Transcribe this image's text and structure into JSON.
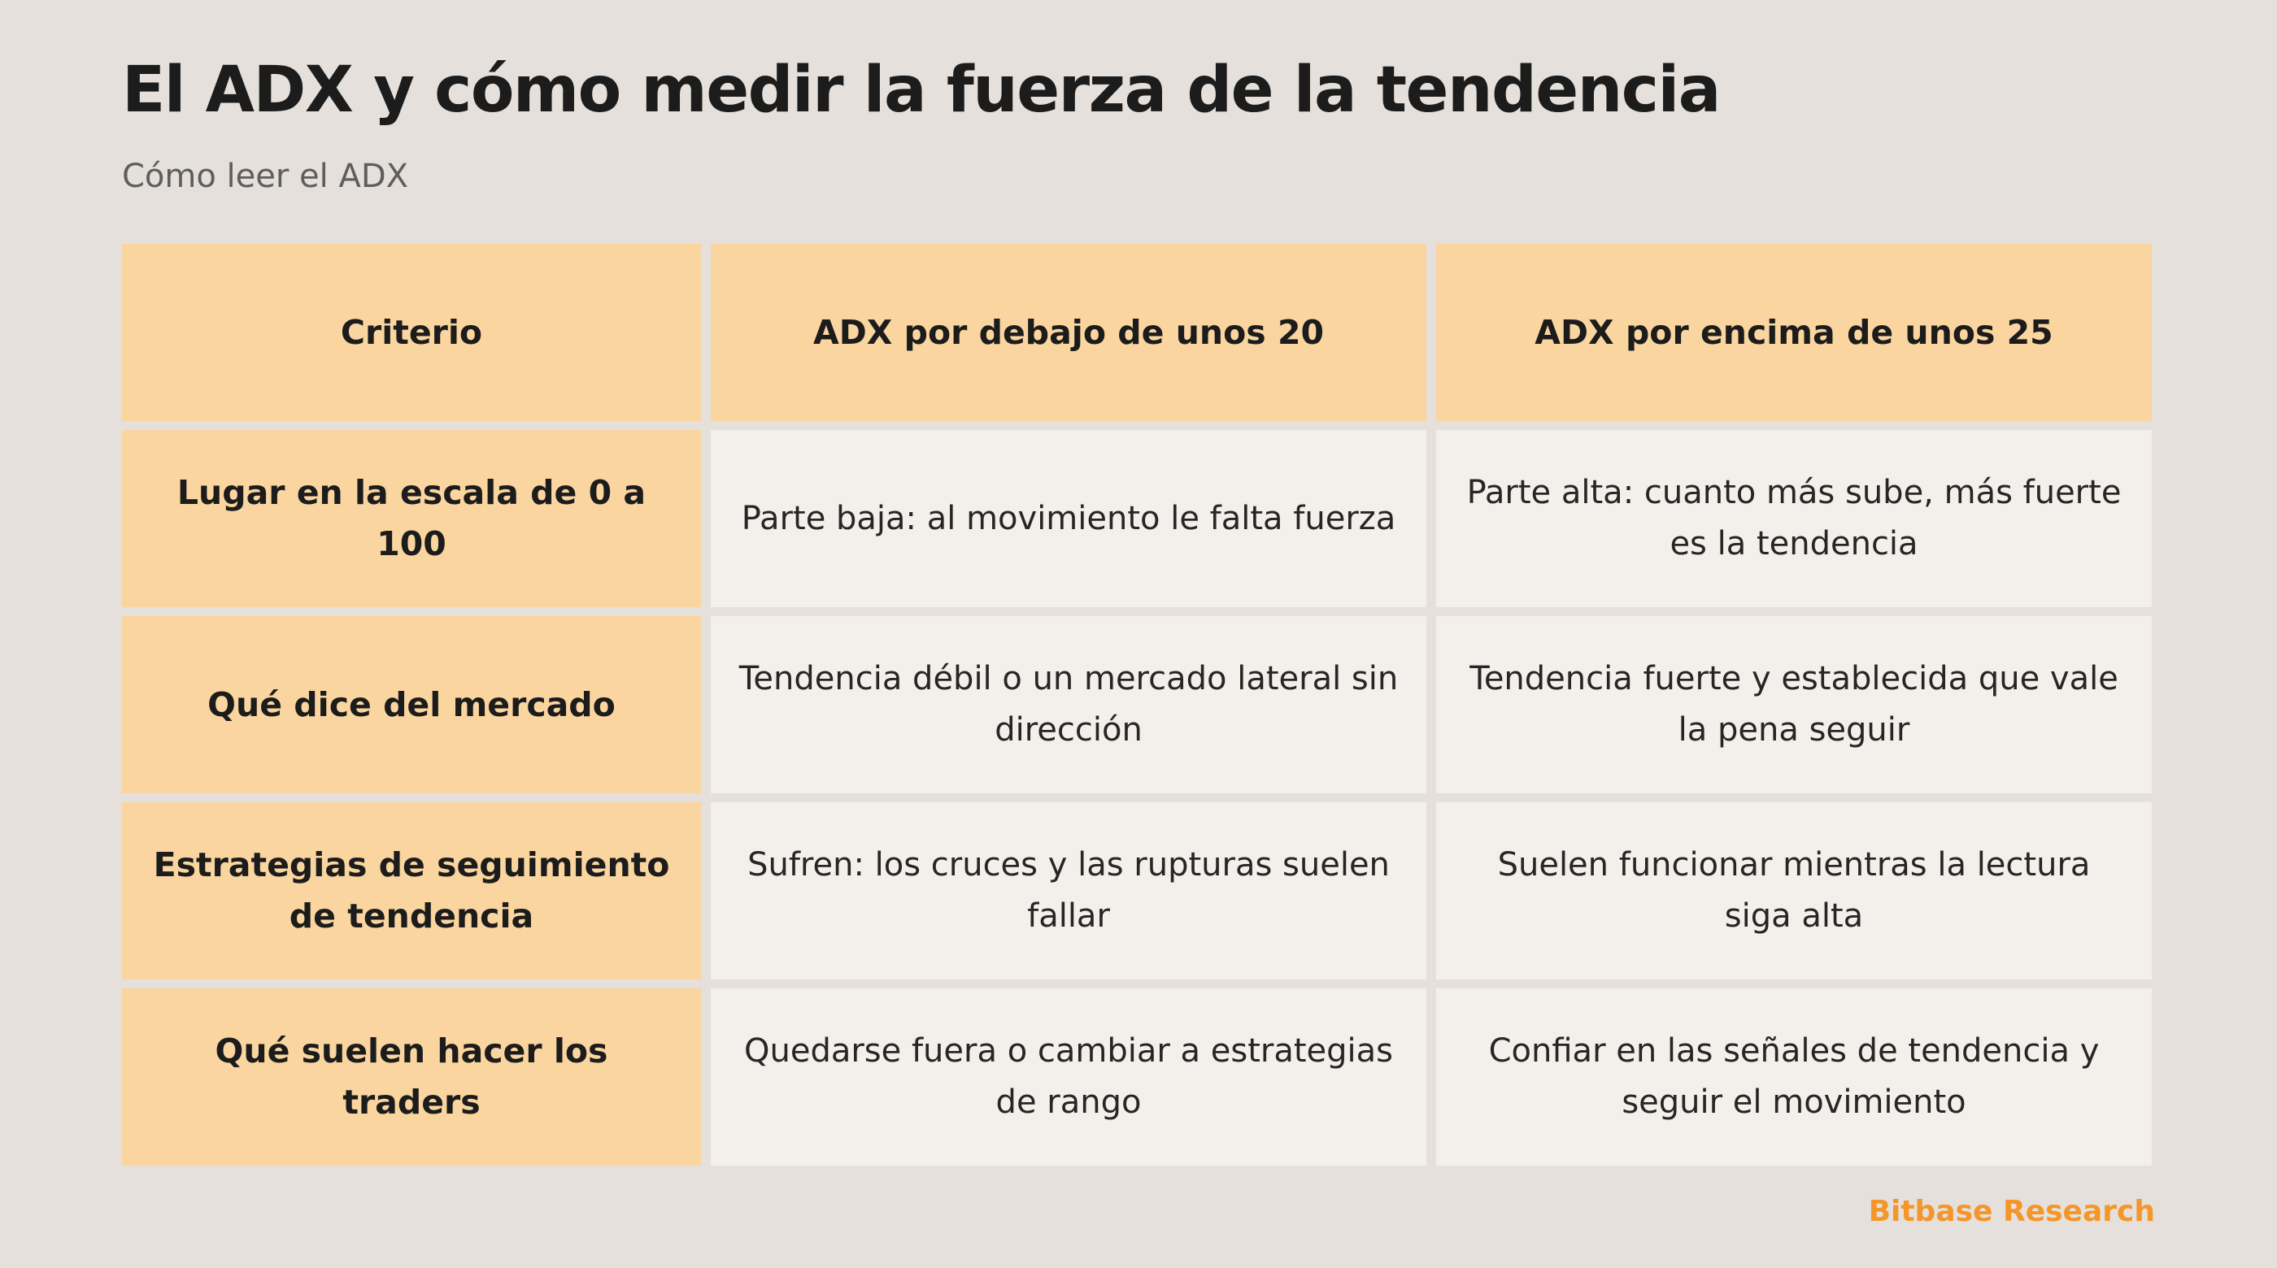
{
  "title": "El ADX y cómo medir la fuerza de la tendencia",
  "subtitle": "Cómo leer el ADX",
  "table": {
    "headers": [
      "Criterio",
      "ADX por debajo de unos 20",
      "ADX por encima de unos 25"
    ],
    "rows": [
      [
        "Lugar en la escala de 0 a 100",
        "Parte baja: al movimiento le falta fuerza",
        "Parte alta: cuanto más sube, más fuerte es la tendencia"
      ],
      [
        "Qué dice del mercado",
        "Tendencia débil o un mercado lateral sin dirección",
        "Tendencia fuerte y establecida que vale la pena seguir"
      ],
      [
        "Estrategias de seguimiento de tendencia",
        "Sufren: los cruces y las rupturas suelen fallar",
        "Suelen funcionar mientras la lectura siga alta"
      ],
      [
        "Qué suelen hacer los traders",
        "Quedarse fuera o cambiar a estrategias de rango",
        "Confiar en las señales de tendencia y seguir el movimiento"
      ]
    ]
  },
  "brand": "Bitbase Research",
  "colors": {
    "background": "#e5e0db",
    "header_cell": "#fad59f",
    "body_cell": "#f3f0eb",
    "brand": "#f4962a"
  }
}
